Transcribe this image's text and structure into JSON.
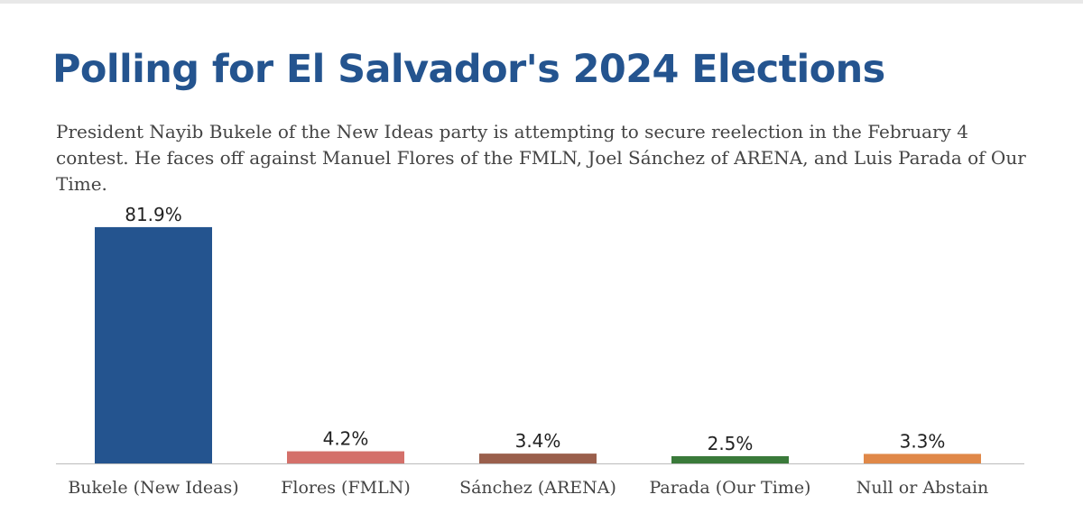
{
  "title": "Polling for El Salvador's 2024 Elections",
  "subtitle": "President Nayib Bukele of the New Ideas party is attempting to secure reelection in the February 4 contest. He faces off against Manuel Flores of the FMLN, Joel Sánchez of ARENA, and Luis Parada of Our Time.",
  "chart_data": {
    "type": "bar",
    "categories": [
      "Bukele (New Ideas)",
      "Flores (FMLN)",
      "Sánchez (ARENA)",
      "Parada (Our Time)",
      "Null or Abstain"
    ],
    "values": [
      81.9,
      4.2,
      3.4,
      2.5,
      3.3
    ],
    "value_labels": [
      "81.9%",
      "4.2%",
      "3.4%",
      "2.5%",
      "3.3%"
    ],
    "colors": [
      "#24548f",
      "#d4706a",
      "#9a5f4c",
      "#3a7a3a",
      "#e08848"
    ],
    "ylim": [
      0,
      100
    ],
    "grid": false,
    "xlabel": "",
    "ylabel": ""
  }
}
